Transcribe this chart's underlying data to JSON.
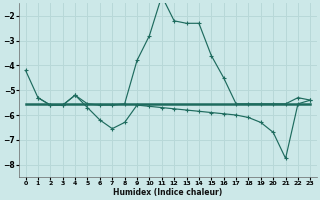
{
  "xlabel": "Humidex (Indice chaleur)",
  "xlim": [
    -0.5,
    23.5
  ],
  "ylim": [
    -8.5,
    -1.5
  ],
  "yticks": [
    -8,
    -7,
    -6,
    -5,
    -4,
    -3,
    -2
  ],
  "xticks": [
    0,
    1,
    2,
    3,
    4,
    5,
    6,
    7,
    8,
    9,
    10,
    11,
    12,
    13,
    14,
    15,
    16,
    17,
    18,
    19,
    20,
    21,
    22,
    23
  ],
  "bg_color": "#cce8e8",
  "grid_color": "#b8d8d8",
  "line_color": "#1e6b5e",
  "series1_x": [
    0,
    1,
    2,
    3,
    4,
    5,
    6,
    7,
    8,
    9,
    10,
    11,
    12,
    13,
    14,
    15,
    16,
    17,
    18,
    19,
    20,
    21,
    22,
    23
  ],
  "series1_y": [
    -4.2,
    -5.3,
    -5.6,
    -5.6,
    -5.2,
    -5.55,
    -5.6,
    -5.6,
    -5.55,
    -3.8,
    -2.8,
    -1.2,
    -2.2,
    -2.3,
    -2.3,
    -3.6,
    -4.5,
    -5.55,
    -5.55,
    -5.55,
    -5.55,
    -5.55,
    -5.3,
    -5.4
  ],
  "series2_x": [
    0,
    1,
    2,
    3,
    4,
    5,
    6,
    7,
    8,
    9,
    10,
    11,
    12,
    13,
    14,
    15,
    16,
    17,
    18,
    19,
    20,
    21,
    22,
    23
  ],
  "series2_y": [
    -5.55,
    -5.55,
    -5.55,
    -5.55,
    -5.55,
    -5.55,
    -5.55,
    -5.55,
    -5.55,
    -5.55,
    -5.55,
    -5.55,
    -5.55,
    -5.55,
    -5.55,
    -5.55,
    -5.55,
    -5.55,
    -5.55,
    -5.55,
    -5.55,
    -5.55,
    -5.55,
    -5.55
  ],
  "series3_x": [
    1,
    2,
    3,
    4,
    5,
    6,
    7,
    8,
    9,
    10,
    11,
    12,
    13,
    14,
    15,
    16,
    17,
    18,
    19,
    20,
    21,
    22,
    23
  ],
  "series3_y": [
    -5.3,
    -5.6,
    -5.6,
    -5.2,
    -5.7,
    -6.2,
    -6.55,
    -6.3,
    -5.6,
    -5.65,
    -5.7,
    -5.75,
    -5.8,
    -5.85,
    -5.9,
    -5.95,
    -6.0,
    -6.1,
    -6.3,
    -6.7,
    -7.75,
    -5.55,
    -5.4
  ]
}
